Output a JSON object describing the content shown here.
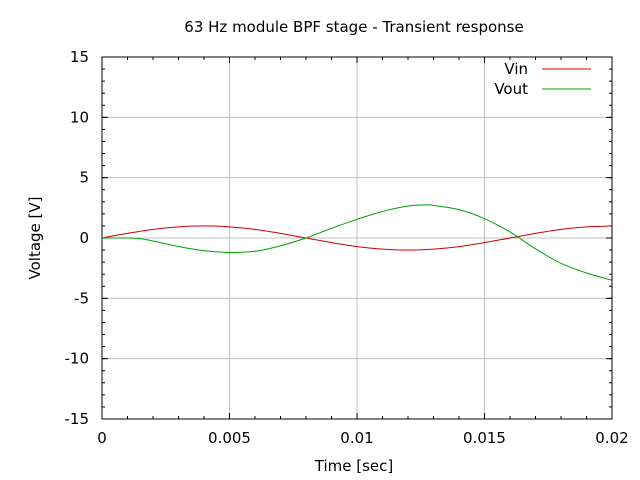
{
  "chart_data": {
    "type": "line",
    "title": "63 Hz module BPF stage - Transient response",
    "xlabel": "Time [sec]",
    "ylabel": "Voltage [V]",
    "xlim": [
      0,
      0.02
    ],
    "ylim": [
      -15,
      15
    ],
    "x_ticks": [
      "0",
      "0.005",
      "0.01",
      "0.015",
      "0.02"
    ],
    "y_ticks": [
      "15",
      "10",
      "5",
      "0",
      "-5",
      "-10",
      "-15"
    ],
    "grid": true,
    "legend_position": "top-right",
    "series": [
      {
        "name": "Vin",
        "color": "#cc0000",
        "x": [
          0,
          0.001,
          0.002,
          0.003,
          0.004,
          0.005,
          0.006,
          0.007,
          0.008,
          0.009,
          0.01,
          0.011,
          0.012,
          0.013,
          0.014,
          0.015,
          0.016,
          0.017,
          0.018,
          0.019,
          0.02
        ],
        "values": [
          0.0,
          0.38,
          0.71,
          0.92,
          1.0,
          0.92,
          0.71,
          0.38,
          0.0,
          -0.38,
          -0.71,
          -0.92,
          -1.0,
          -0.92,
          -0.71,
          -0.38,
          0.0,
          0.38,
          0.71,
          0.92,
          1.0
        ]
      },
      {
        "name": "Vout",
        "color": "#00a000",
        "x": [
          0,
          0.001,
          0.0015,
          0.002,
          0.003,
          0.004,
          0.005,
          0.006,
          0.007,
          0.008,
          0.009,
          0.01,
          0.011,
          0.012,
          0.0127,
          0.013,
          0.014,
          0.015,
          0.016,
          0.017,
          0.018,
          0.019,
          0.02
        ],
        "values": [
          0.0,
          0.0,
          -0.05,
          -0.25,
          -0.7,
          -1.05,
          -1.2,
          -1.1,
          -0.65,
          0.0,
          0.8,
          1.55,
          2.2,
          2.65,
          2.75,
          2.7,
          2.35,
          1.6,
          0.5,
          -0.9,
          -2.1,
          -2.9,
          -3.5
        ]
      }
    ]
  }
}
